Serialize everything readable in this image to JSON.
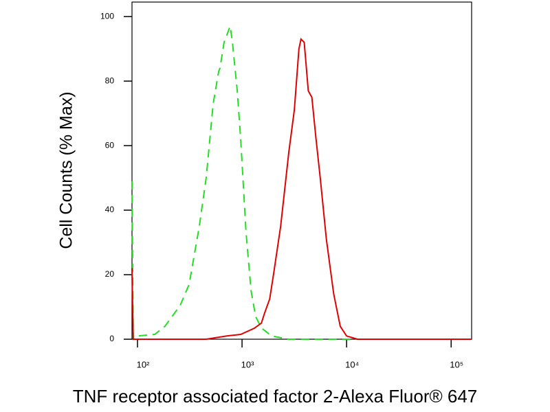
{
  "chart_data": {
    "type": "line",
    "xlabel": "TNF receptor associated factor 2-Alexa Fluor® 647",
    "ylabel": "Cell Counts (% Max)",
    "xscale": "log",
    "xlim": [
      88.6,
      157000
    ],
    "ylim": [
      0,
      104.5
    ],
    "xticks": [
      {
        "value": 100,
        "label": "10²"
      },
      {
        "value": 1000,
        "label": "10³"
      },
      {
        "value": 10000,
        "label": "10⁴"
      },
      {
        "value": 100000,
        "label": "10⁵"
      }
    ],
    "yticks": [
      0,
      20,
      40,
      60,
      80,
      100
    ],
    "series": [
      {
        "color": "#22dd22",
        "linestyle": "dashed",
        "x": [
          88.6,
          91,
          100,
          146,
          183,
          256,
          312,
          390,
          454,
          530,
          598,
          615,
          673,
          770,
          809,
          900,
          970,
          1092,
          1220,
          1350,
          1530,
          1920,
          2800,
          157000
        ],
        "values": [
          49,
          0,
          1,
          1.5,
          4,
          10.5,
          17,
          35,
          50,
          73,
          83,
          84,
          92,
          97,
          92,
          77,
          62,
          33,
          15,
          7,
          3.5,
          1,
          0,
          0
        ]
      },
      {
        "color": "#e00000",
        "linestyle": "solid",
        "x": [
          88.6,
          91,
          100,
          454,
          715,
          970,
          1310,
          1530,
          1640,
          1840,
          2000,
          2340,
          2800,
          3160,
          3500,
          3660,
          3930,
          4300,
          4650,
          5100,
          5600,
          6400,
          7530,
          8700,
          10000,
          12700,
          157000
        ],
        "values": [
          22,
          0,
          0,
          0,
          1,
          1.5,
          3.4,
          5,
          8,
          12.5,
          20,
          35,
          58,
          71,
          90,
          93,
          92,
          77,
          75,
          62,
          50,
          31,
          14,
          4,
          1,
          0,
          0
        ]
      }
    ]
  }
}
